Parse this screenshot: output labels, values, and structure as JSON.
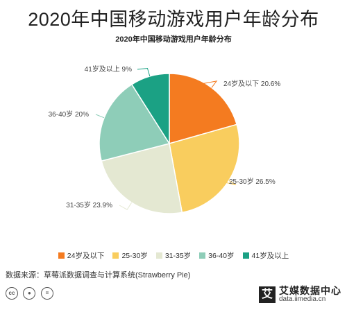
{
  "page": {
    "title": "2020年中国移动游戏用户年龄分布",
    "source": "数据来源：草莓派数据调查与计算系统(Strawberry Pie)",
    "brand_name": "艾媒数据中心",
    "brand_url": "data.iimedia.cn",
    "brand_logo_char": "艾"
  },
  "chart_data": {
    "type": "pie",
    "title": "2020年中国移动游戏用户年龄分布",
    "legend_position": "bottom",
    "slices": [
      {
        "label": "24岁及以下",
        "legend": "24岁及以下",
        "value": 20.6,
        "display": "24岁及以下 20.6%",
        "color": "#F47B20"
      },
      {
        "label": "25-30岁",
        "legend": "25-30岁",
        "value": 26.5,
        "display": "25-30岁 26.5%",
        "color": "#F9CD5E"
      },
      {
        "label": "31-35岁",
        "legend": "31-35岁",
        "value": 23.9,
        "display": "31-35岁 23.9%",
        "color": "#E4E8D2"
      },
      {
        "label": "36-40岁",
        "legend": "36-40岁",
        "value": 20.0,
        "display": "36-40岁 20%",
        "color": "#8ECDB8"
      },
      {
        "label": "41岁及以上",
        "legend": "41岁及以上",
        "value": 9.0,
        "display": "41岁及以上 9%",
        "color": "#1BA184"
      }
    ]
  },
  "icons": [
    "cc-icon",
    "person-icon",
    "equal-icon"
  ]
}
